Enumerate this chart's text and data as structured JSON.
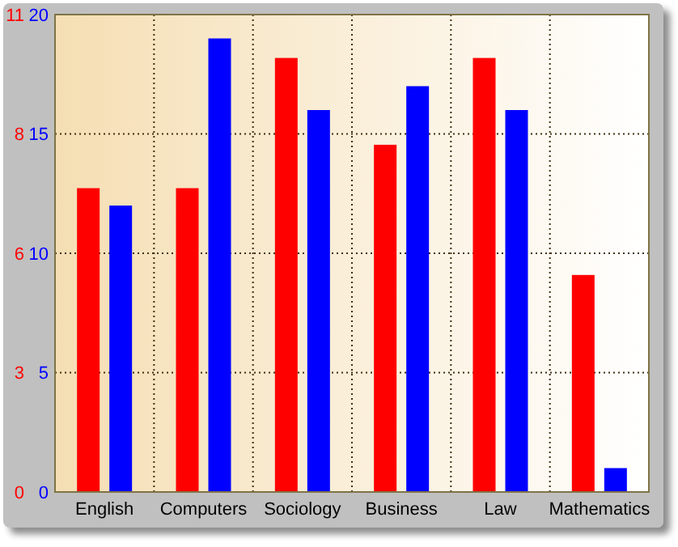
{
  "chart_data": {
    "type": "bar",
    "categories": [
      "English",
      "Computers",
      "Sociology",
      "Business",
      "Law",
      "Mathematics"
    ],
    "series": [
      {
        "color": "#ff0000",
        "axis": "y2",
        "values": [
          7,
          7,
          10,
          8,
          10,
          5
        ]
      },
      {
        "color": "#0000ff",
        "values": [
          12,
          19,
          16,
          17,
          16,
          1
        ]
      }
    ],
    "ylim": [
      0,
      20
    ],
    "yticks": [
      0,
      5,
      10,
      15,
      20
    ],
    "y2lim": [
      0,
      11
    ],
    "y2ticks": [
      0,
      {
        "value": 2.75,
        "label": "3"
      },
      {
        "value": 5.5,
        "label": "6"
      },
      {
        "value": 8.25,
        "label": "8"
      },
      11
    ],
    "grid": true
  }
}
